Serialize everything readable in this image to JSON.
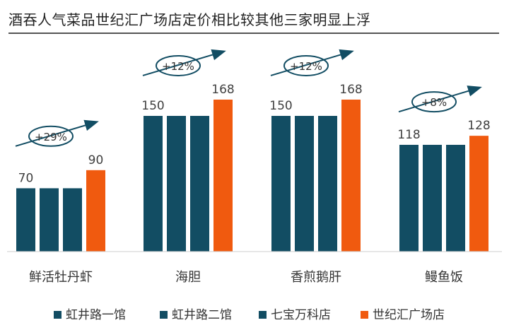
{
  "title": "酒吞人气菜品世纪汇广场店定价相比较其他三家明显上浮",
  "colors": {
    "navy": "#124d63",
    "orange": "#f05a0f",
    "annotation": "#124d63",
    "text": "#404040"
  },
  "chart_data": {
    "type": "bar",
    "title": "酒吞人气菜品世纪汇广场店定价相比较其他三家明显上浮",
    "categories": [
      "鲜活牡丹虾",
      "海胆",
      "香煎鹅肝",
      "鳗鱼饭"
    ],
    "series": [
      {
        "name": "虹井路一馆",
        "color": "#124d63",
        "values": [
          70,
          150,
          150,
          118
        ]
      },
      {
        "name": "虹井路二馆",
        "color": "#124d63",
        "values": [
          70,
          150,
          150,
          118
        ]
      },
      {
        "name": "七宝万科店",
        "color": "#124d63",
        "values": [
          70,
          150,
          150,
          118
        ]
      },
      {
        "name": "世纪汇广场店",
        "color": "#f05a0f",
        "values": [
          90,
          168,
          168,
          128
        ]
      }
    ],
    "annotations": [
      "+29%",
      "+12%",
      "+12%",
      "+8%"
    ],
    "ylim": [
      0,
      200
    ],
    "grid": false,
    "legend_position": "bottom"
  }
}
